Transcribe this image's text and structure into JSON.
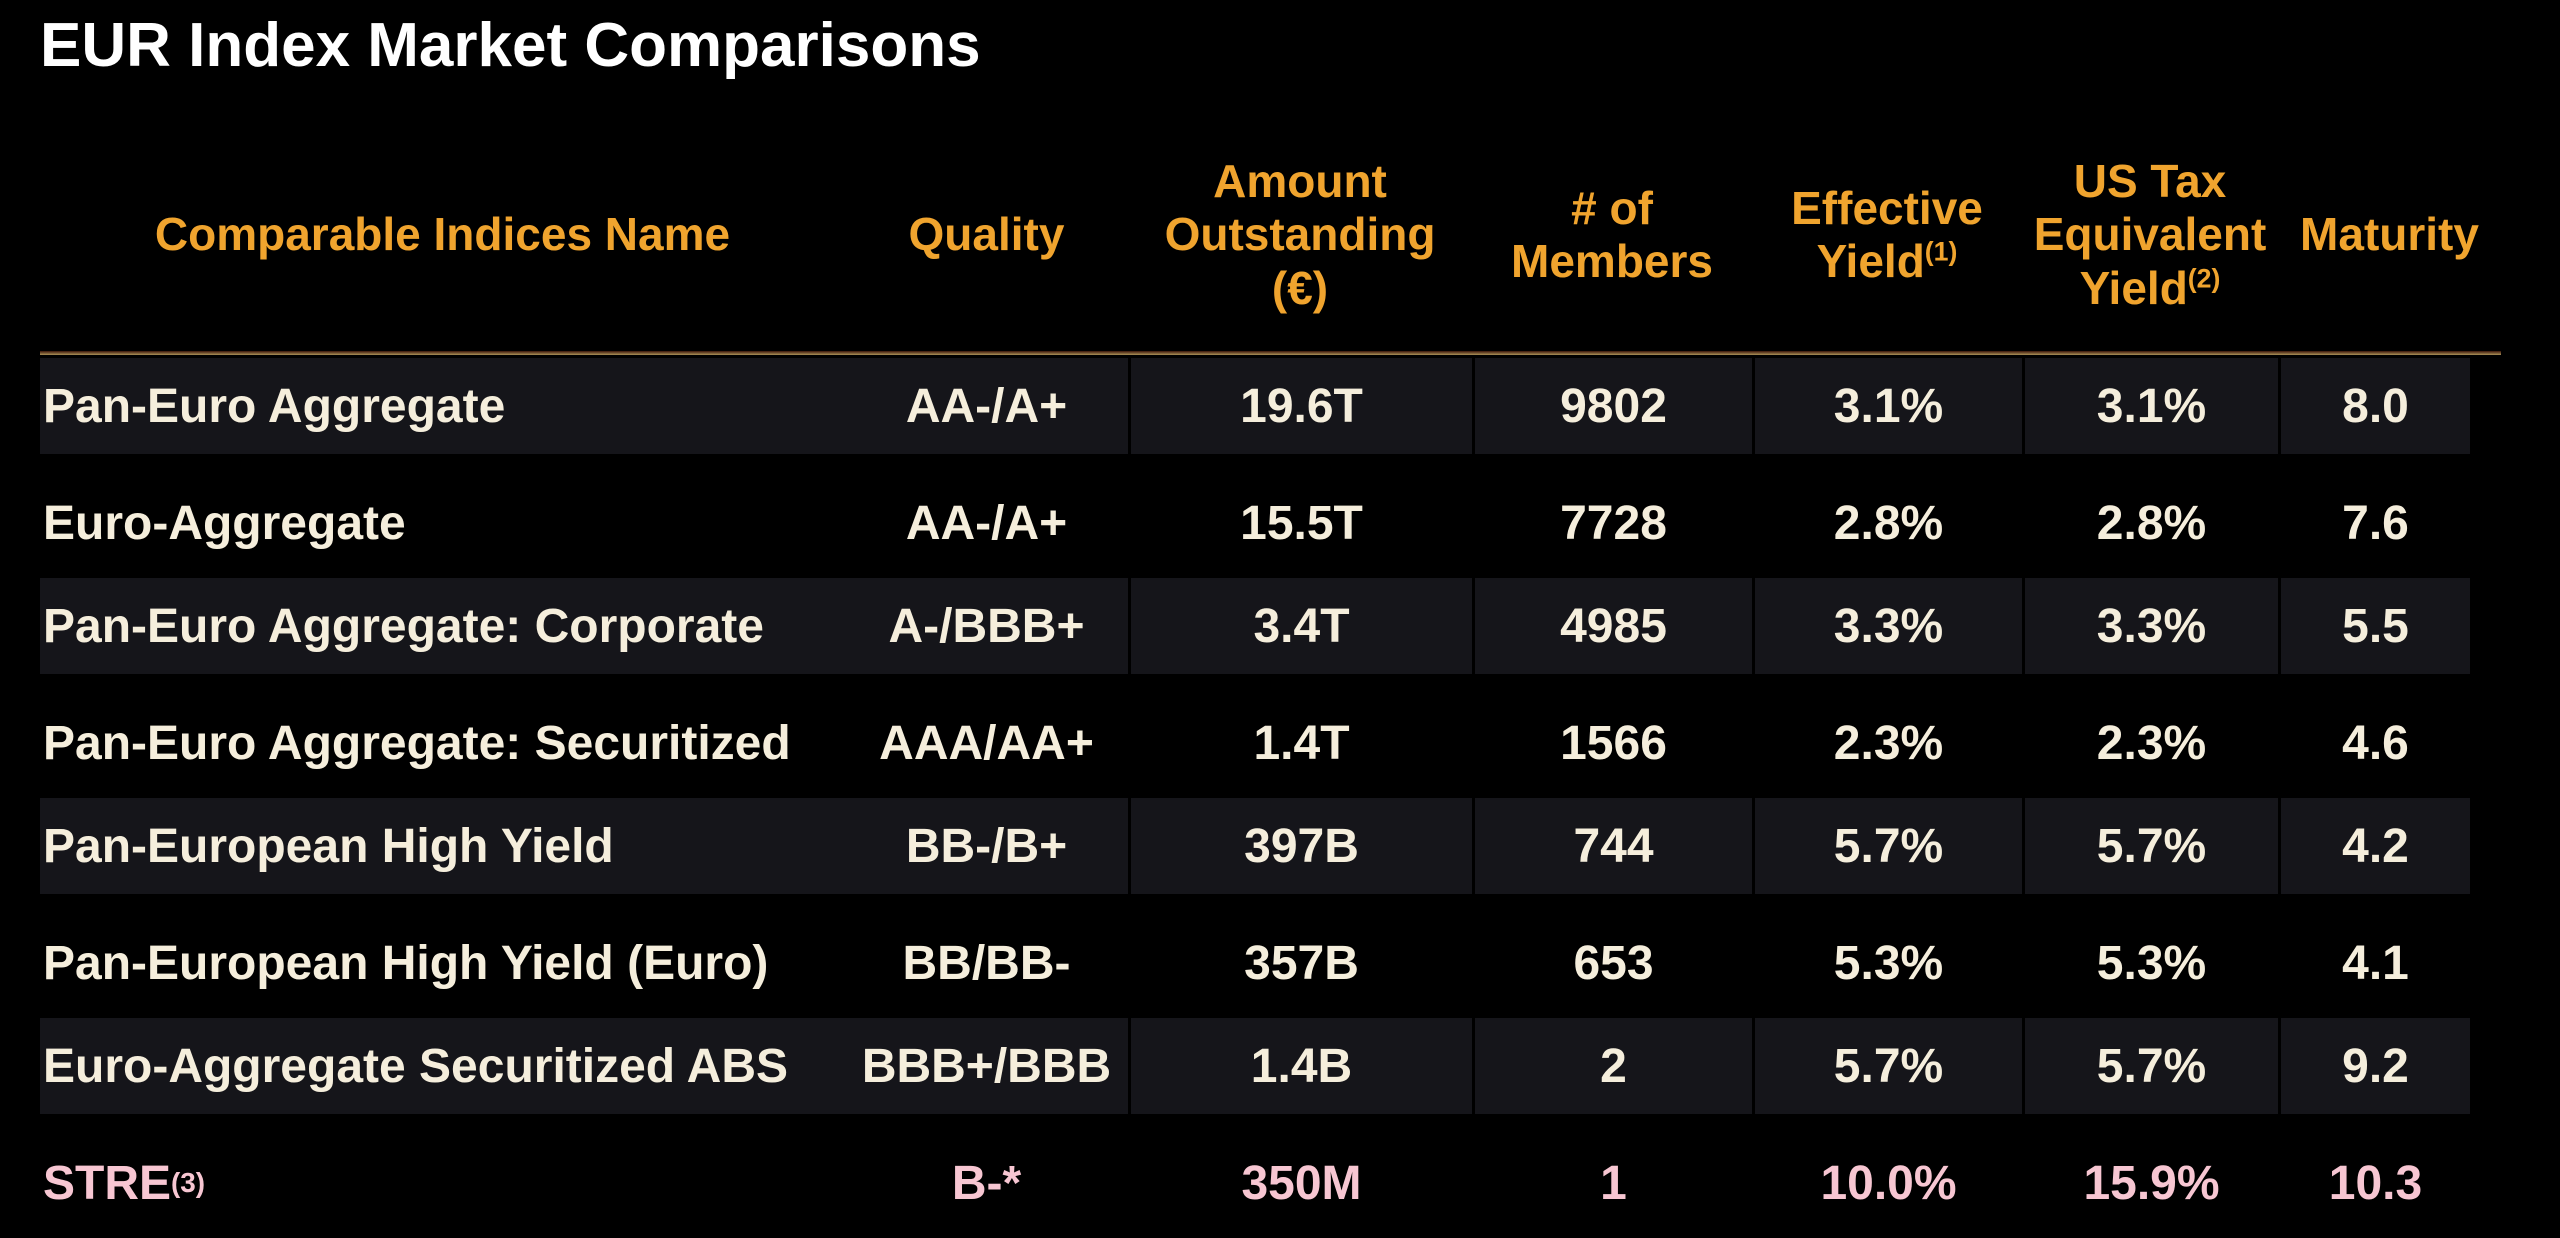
{
  "title": "EUR Index Market Comparisons",
  "colors": {
    "background": "#000000",
    "title_text": "#FFFFFF",
    "header_text": "#F0A42E",
    "body_text": "#F5EEDC",
    "highlight_text": "#F7C6D2",
    "row_band": "#15151A",
    "divider_line": "#AB9258"
  },
  "table": {
    "columns": [
      {
        "id": "name",
        "align": "left",
        "lines": [
          "Comparable Indices Name"
        ],
        "sup": ""
      },
      {
        "id": "quality",
        "align": "center",
        "lines": [
          "Quality"
        ],
        "sup": ""
      },
      {
        "id": "amount",
        "align": "center",
        "lines": [
          "Amount",
          "Outstanding",
          "(€)"
        ],
        "sup": ""
      },
      {
        "id": "members",
        "align": "center",
        "lines": [
          "# of",
          "Members"
        ],
        "sup": ""
      },
      {
        "id": "effective_yield",
        "align": "center",
        "lines": [
          "Effective",
          "Yield"
        ],
        "sup": "(1)"
      },
      {
        "id": "us_tax_equivalent_yield",
        "align": "center",
        "lines": [
          "US Tax",
          "Equivalent",
          "Yield"
        ],
        "sup": "(2)"
      },
      {
        "id": "maturity",
        "align": "center",
        "lines": [
          "Maturity"
        ],
        "sup": ""
      }
    ],
    "rows": [
      {
        "name": "Pan-Euro Aggregate",
        "name_sup": "",
        "quality": "AA-/A+",
        "amount": "19.6T",
        "members": "9802",
        "effective_yield": "3.1%",
        "us_tax_equivalent_yield": "3.1%",
        "maturity": "8.0",
        "highlight": false
      },
      {
        "name": "Euro-Aggregate",
        "name_sup": "",
        "quality": "AA-/A+",
        "amount": "15.5T",
        "members": "7728",
        "effective_yield": "2.8%",
        "us_tax_equivalent_yield": "2.8%",
        "maturity": "7.6",
        "highlight": false
      },
      {
        "name": "Pan-Euro Aggregate: Corporate",
        "name_sup": "",
        "quality": "A-/BBB+",
        "amount": "3.4T",
        "members": "4985",
        "effective_yield": "3.3%",
        "us_tax_equivalent_yield": "3.3%",
        "maturity": "5.5",
        "highlight": false
      },
      {
        "name": "Pan-Euro Aggregate: Securitized",
        "name_sup": "",
        "quality": "AAA/AA+",
        "amount": "1.4T",
        "members": "1566",
        "effective_yield": "2.3%",
        "us_tax_equivalent_yield": "2.3%",
        "maturity": "4.6",
        "highlight": false
      },
      {
        "name": "Pan-European High Yield",
        "name_sup": "",
        "quality": "BB-/B+",
        "amount": "397B",
        "members": "744",
        "effective_yield": "5.7%",
        "us_tax_equivalent_yield": "5.7%",
        "maturity": "4.2",
        "highlight": false
      },
      {
        "name": "Pan-European High Yield (Euro)",
        "name_sup": "",
        "quality": "BB/BB-",
        "amount": "357B",
        "members": "653",
        "effective_yield": "5.3%",
        "us_tax_equivalent_yield": "5.3%",
        "maturity": "4.1",
        "highlight": false
      },
      {
        "name": "Euro-Aggregate Securitized ABS",
        "name_sup": "",
        "quality": "BBB+/BBB",
        "amount": "1.4B",
        "members": "2",
        "effective_yield": "5.7%",
        "us_tax_equivalent_yield": "5.7%",
        "maturity": "9.2",
        "highlight": false
      },
      {
        "name": "STRE",
        "name_sup": "(3)",
        "quality": "B-*",
        "amount": "350M",
        "members": "1",
        "effective_yield": "10.0%",
        "us_tax_equivalent_yield": "15.9%",
        "maturity": "10.3",
        "highlight": true
      }
    ]
  }
}
